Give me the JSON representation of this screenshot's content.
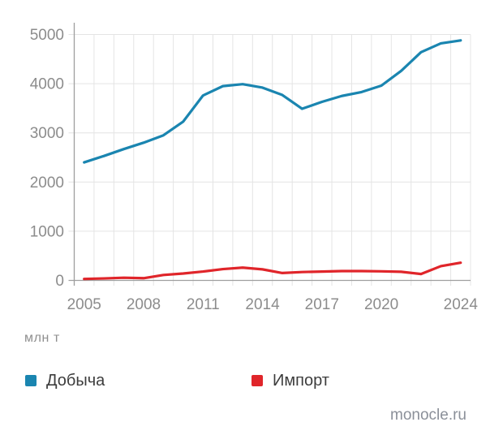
{
  "chart_data": {
    "type": "line",
    "title": "",
    "ylabel_unit": "млн т",
    "ylim": [
      0,
      5000
    ],
    "yticks": [
      0,
      1000,
      2000,
      3000,
      4000,
      5000
    ],
    "x": [
      2005,
      2006,
      2007,
      2008,
      2009,
      2010,
      2011,
      2012,
      2013,
      2014,
      2015,
      2016,
      2017,
      2018,
      2019,
      2020,
      2021,
      2022,
      2023,
      2024
    ],
    "xtick_labels": [
      2005,
      2008,
      2011,
      2014,
      2017,
      2020,
      2024
    ],
    "grid": true,
    "legend_position": "bottom",
    "series": [
      {
        "name": "Добыча",
        "color": "#1a85b0",
        "values": [
          2400,
          2530,
          2670,
          2800,
          2950,
          3230,
          3760,
          3950,
          3990,
          3920,
          3770,
          3490,
          3630,
          3750,
          3830,
          3960,
          4260,
          4640,
          4820,
          4880
        ]
      },
      {
        "name": "Импорт",
        "color": "#e0252a",
        "values": [
          30,
          40,
          55,
          45,
          110,
          140,
          180,
          230,
          260,
          225,
          150,
          170,
          180,
          190,
          190,
          185,
          175,
          130,
          290,
          360
        ]
      }
    ],
    "colors": {
      "grid_line": "#e4e4e4",
      "axis_line": "#9f9f9f",
      "tick_label": "#8c8c8c"
    }
  },
  "footer": {
    "source": "monocle.ru"
  }
}
